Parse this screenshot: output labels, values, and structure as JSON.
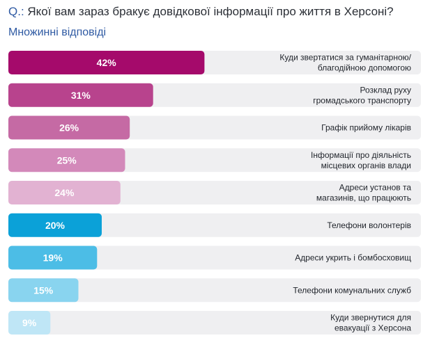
{
  "header": {
    "question_prefix": "Q.:",
    "question_text": "Якої вам зараз бракує довідкової інформації про життя в Херсоні?",
    "subtitle": "Множинні відповіді"
  },
  "chart_data": {
    "type": "bar",
    "orientation": "horizontal",
    "title": "Якої вам зараз бракує довідкової інформації про життя в Херсоні?",
    "subtitle": "Множинні відповіді",
    "xlabel": "",
    "ylabel": "",
    "xlim": [
      0,
      100
    ],
    "unit": "%",
    "categories": [
      [
        "Куди звертатися за гуманітарною/",
        "благодійною допомогою"
      ],
      [
        "Розклад руху",
        "громадського транспорту"
      ],
      [
        "Графік прийому лікарів"
      ],
      [
        "Інформації про діяльність",
        "місцевих органів влади"
      ],
      [
        "Адреси установ та",
        "магазинів, що працюють"
      ],
      [
        "Телефони волонтерів"
      ],
      [
        "Адреси укрить і бомбосховищ"
      ],
      [
        "Телефони комунальних служб"
      ],
      [
        "Куди звернутися для",
        "евакуації з Херсона"
      ]
    ],
    "values": [
      42,
      31,
      26,
      25,
      24,
      20,
      19,
      15,
      9
    ],
    "value_labels": [
      "42%",
      "31%",
      "26%",
      "25%",
      "24%",
      "20%",
      "19%",
      "15%",
      "9%"
    ],
    "colors": [
      "#a50a6b",
      "#b8438d",
      "#c56aa4",
      "#d389ba",
      "#e2b2d2",
      "#0ba1d8",
      "#4cbde6",
      "#89d4ef",
      "#bfe6f6"
    ],
    "track_color": "#efeff1"
  }
}
